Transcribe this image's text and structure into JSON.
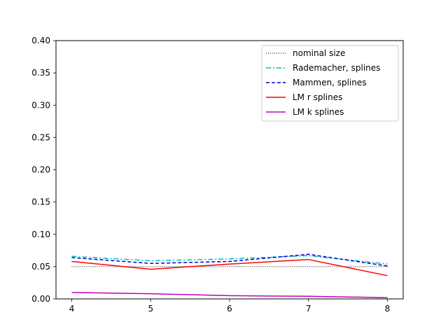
{
  "chart_data": {
    "type": "line",
    "title": "",
    "xlabel": "",
    "ylabel": "",
    "x": [
      4,
      5,
      6,
      7,
      8
    ],
    "xlim": [
      3.8,
      8.2
    ],
    "ylim": [
      0.0,
      0.4
    ],
    "xticks": [
      "4",
      "5",
      "6",
      "7",
      "8"
    ],
    "yticks": [
      "0.00",
      "0.05",
      "0.10",
      "0.15",
      "0.20",
      "0.25",
      "0.30",
      "0.35",
      "0.40"
    ],
    "grid": false,
    "legend_position": "top-right",
    "series": [
      {
        "name": "nominal size",
        "values": [
          0.05,
          0.05,
          0.05,
          0.05,
          0.05
        ],
        "color": "#000000",
        "style": "dotted"
      },
      {
        "name": "Rademacher, splines",
        "values": [
          0.066,
          0.059,
          0.062,
          0.067,
          0.054
        ],
        "color": "#00bfbf",
        "style": "dashdot"
      },
      {
        "name": "Mammen, splines",
        "values": [
          0.064,
          0.055,
          0.058,
          0.069,
          0.051
        ],
        "color": "#0000cc",
        "style": "dashed"
      },
      {
        "name": "LM r splines",
        "values": [
          0.058,
          0.046,
          0.054,
          0.061,
          0.036
        ],
        "color": "#ff0000",
        "style": "solid"
      },
      {
        "name": "LM k splines",
        "values": [
          0.01,
          0.008,
          0.005,
          0.004,
          0.002
        ],
        "color": "#bf00bf",
        "style": "solid"
      }
    ]
  }
}
